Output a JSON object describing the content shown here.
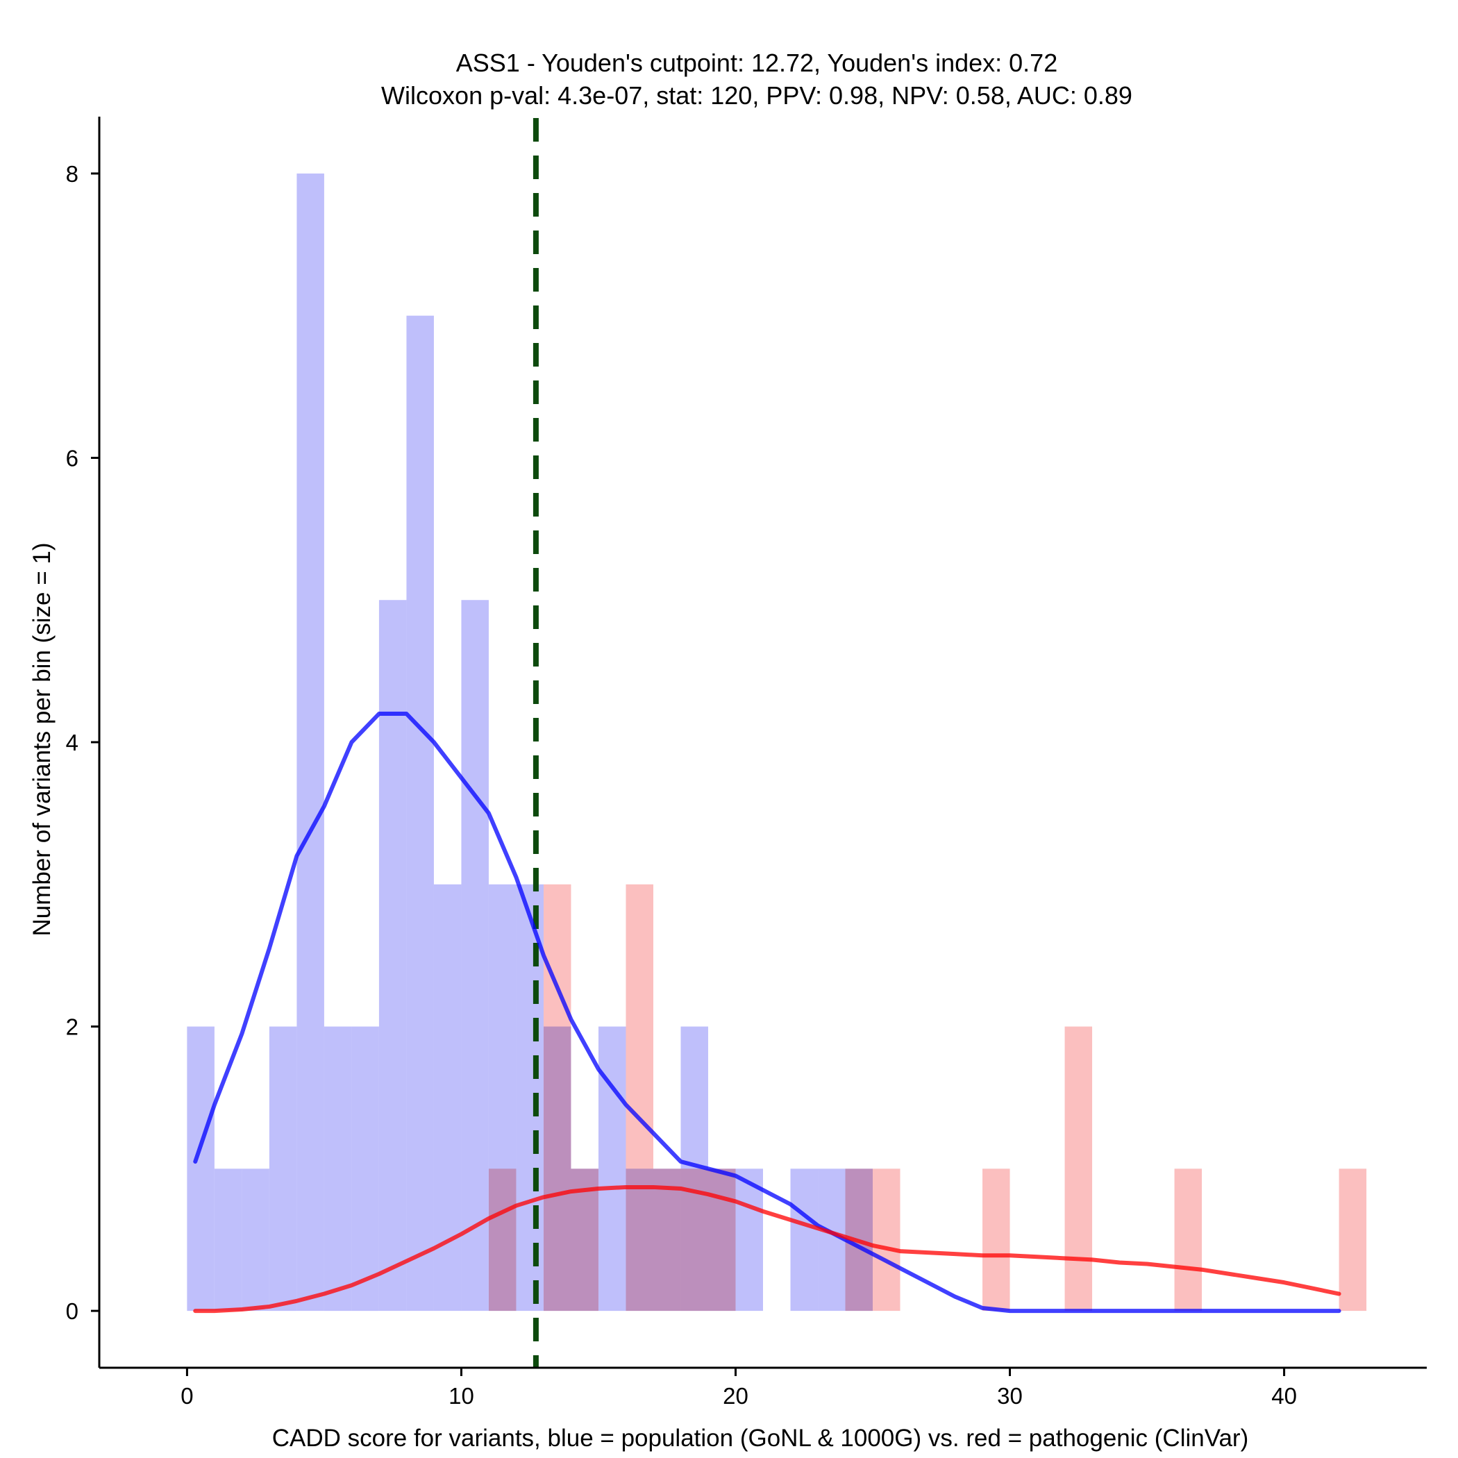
{
  "chart_data": {
    "type": "histogram",
    "title_line1": "ASS1 - Youden's cutpoint: 12.72, Youden's index: 0.72",
    "title_line2": "Wilcoxon p-val: 4.3e-07, stat: 120, PPV: 0.98, NPV: 0.58, AUC: 0.89",
    "xlabel": "CADD score for variants, blue = population (GoNL & 1000G) vs. red = pathogenic (ClinVar)",
    "ylabel": "Number of variants per bin (size = 1)",
    "xlim": [
      -3.2,
      45.2
    ],
    "ylim": [
      -0.4,
      8.4
    ],
    "xticks": [
      0,
      10,
      20,
      30,
      40
    ],
    "yticks": [
      0,
      2,
      4,
      6,
      8
    ],
    "bin_size": 1,
    "cutpoint": 12.72,
    "series": [
      {
        "name": "population (GoNL & 1000G)",
        "color": "#0000ff",
        "bar_color": "#bcbcfb",
        "bins": [
          [
            0,
            2
          ],
          [
            1,
            1
          ],
          [
            2,
            1
          ],
          [
            3,
            2
          ],
          [
            4,
            8
          ],
          [
            5,
            2
          ],
          [
            6,
            2
          ],
          [
            7,
            5
          ],
          [
            8,
            7
          ],
          [
            9,
            3
          ],
          [
            10,
            5
          ],
          [
            11,
            3
          ],
          [
            12,
            3
          ],
          [
            13,
            2
          ],
          [
            14,
            1
          ],
          [
            15,
            2
          ],
          [
            16,
            1
          ],
          [
            17,
            1
          ],
          [
            18,
            2
          ],
          [
            19,
            1
          ],
          [
            20,
            1
          ],
          [
            22,
            1
          ],
          [
            23,
            1
          ],
          [
            24,
            1
          ]
        ],
        "density": [
          [
            0.3,
            1.05
          ],
          [
            1,
            1.45
          ],
          [
            2,
            1.95
          ],
          [
            3,
            2.55
          ],
          [
            4,
            3.2
          ],
          [
            5,
            3.55
          ],
          [
            6,
            4.0
          ],
          [
            7,
            4.2
          ],
          [
            8,
            4.2
          ],
          [
            9,
            4.0
          ],
          [
            10,
            3.75
          ],
          [
            11,
            3.5
          ],
          [
            12,
            3.05
          ],
          [
            13,
            2.5
          ],
          [
            14,
            2.05
          ],
          [
            15,
            1.7
          ],
          [
            16,
            1.45
          ],
          [
            17,
            1.25
          ],
          [
            18,
            1.05
          ],
          [
            19,
            1.0
          ],
          [
            20,
            0.95
          ],
          [
            21,
            0.85
          ],
          [
            22,
            0.75
          ],
          [
            23,
            0.6
          ],
          [
            24,
            0.5
          ],
          [
            25,
            0.4
          ],
          [
            26,
            0.3
          ],
          [
            27,
            0.2
          ],
          [
            28,
            0.1
          ],
          [
            29,
            0.02
          ],
          [
            30,
            0.0
          ],
          [
            35,
            0.0
          ],
          [
            42,
            0.0
          ]
        ]
      },
      {
        "name": "pathogenic (ClinVar)",
        "color": "#ff0000",
        "bar_color": "#fbbcbc",
        "bins": [
          [
            11,
            1
          ],
          [
            13,
            3
          ],
          [
            14,
            1
          ],
          [
            16,
            3
          ],
          [
            17,
            1
          ],
          [
            18,
            1
          ],
          [
            19,
            1
          ],
          [
            24,
            1
          ],
          [
            25,
            1
          ],
          [
            29,
            1
          ],
          [
            32,
            2
          ],
          [
            36,
            1
          ],
          [
            42,
            1
          ]
        ],
        "density": [
          [
            0.3,
            0.0
          ],
          [
            1,
            0.0
          ],
          [
            2,
            0.01
          ],
          [
            3,
            0.03
          ],
          [
            4,
            0.07
          ],
          [
            5,
            0.12
          ],
          [
            6,
            0.18
          ],
          [
            7,
            0.26
          ],
          [
            8,
            0.35
          ],
          [
            9,
            0.44
          ],
          [
            10,
            0.54
          ],
          [
            11,
            0.65
          ],
          [
            12,
            0.74
          ],
          [
            13,
            0.8
          ],
          [
            14,
            0.84
          ],
          [
            15,
            0.86
          ],
          [
            16,
            0.87
          ],
          [
            17,
            0.87
          ],
          [
            18,
            0.86
          ],
          [
            19,
            0.82
          ],
          [
            20,
            0.77
          ],
          [
            21,
            0.7
          ],
          [
            22,
            0.64
          ],
          [
            23,
            0.58
          ],
          [
            24,
            0.52
          ],
          [
            25,
            0.46
          ],
          [
            26,
            0.42
          ],
          [
            27,
            0.41
          ],
          [
            28,
            0.4
          ],
          [
            29,
            0.39
          ],
          [
            30,
            0.39
          ],
          [
            31,
            0.38
          ],
          [
            32,
            0.37
          ],
          [
            33,
            0.36
          ],
          [
            34,
            0.34
          ],
          [
            35,
            0.33
          ],
          [
            36,
            0.31
          ],
          [
            37,
            0.29
          ],
          [
            38,
            0.26
          ],
          [
            39,
            0.23
          ],
          [
            40,
            0.2
          ],
          [
            41,
            0.16
          ],
          [
            42,
            0.12
          ]
        ]
      }
    ]
  }
}
